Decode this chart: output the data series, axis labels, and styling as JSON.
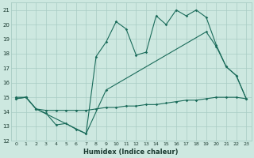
{
  "xlabel": "Humidex (Indice chaleur)",
  "bg_color": "#cde8e0",
  "line_color": "#1a6b5a",
  "grid_color": "#a8ccc4",
  "xlim": [
    -0.5,
    23.5
  ],
  "ylim": [
    12,
    21.5
  ],
  "xticks": [
    0,
    1,
    2,
    3,
    4,
    5,
    6,
    7,
    8,
    9,
    10,
    11,
    12,
    13,
    14,
    15,
    16,
    17,
    18,
    19,
    20,
    21,
    22,
    23
  ],
  "yticks": [
    12,
    13,
    14,
    15,
    16,
    17,
    18,
    19,
    20,
    21
  ],
  "line_jagged_x": [
    0,
    1,
    2,
    3,
    4,
    5,
    6,
    7,
    8,
    9,
    10,
    11,
    12,
    13,
    14,
    15,
    16,
    17,
    18,
    19,
    20,
    21,
    22,
    23
  ],
  "line_jagged_y": [
    14.9,
    15.0,
    14.2,
    13.9,
    13.1,
    13.2,
    12.8,
    12.5,
    17.8,
    18.8,
    20.2,
    19.7,
    17.9,
    18.1,
    20.6,
    20.0,
    21.0,
    20.6,
    21.0,
    20.5,
    18.6,
    17.1,
    16.5,
    14.9
  ],
  "line_upper_x": [
    0,
    1,
    2,
    7,
    9,
    19,
    20,
    21,
    22,
    23
  ],
  "line_upper_y": [
    15.0,
    15.0,
    14.2,
    12.5,
    15.5,
    19.5,
    18.5,
    17.1,
    16.5,
    14.9
  ],
  "line_lower_x": [
    0,
    1,
    2,
    3,
    4,
    5,
    6,
    7,
    8,
    9,
    10,
    11,
    12,
    13,
    14,
    15,
    16,
    17,
    18,
    19,
    20,
    21,
    22,
    23
  ],
  "line_lower_y": [
    14.9,
    15.0,
    14.2,
    14.1,
    14.1,
    14.1,
    14.1,
    14.1,
    14.2,
    14.3,
    14.3,
    14.4,
    14.4,
    14.5,
    14.5,
    14.6,
    14.7,
    14.8,
    14.8,
    14.9,
    15.0,
    15.0,
    15.0,
    14.9
  ]
}
